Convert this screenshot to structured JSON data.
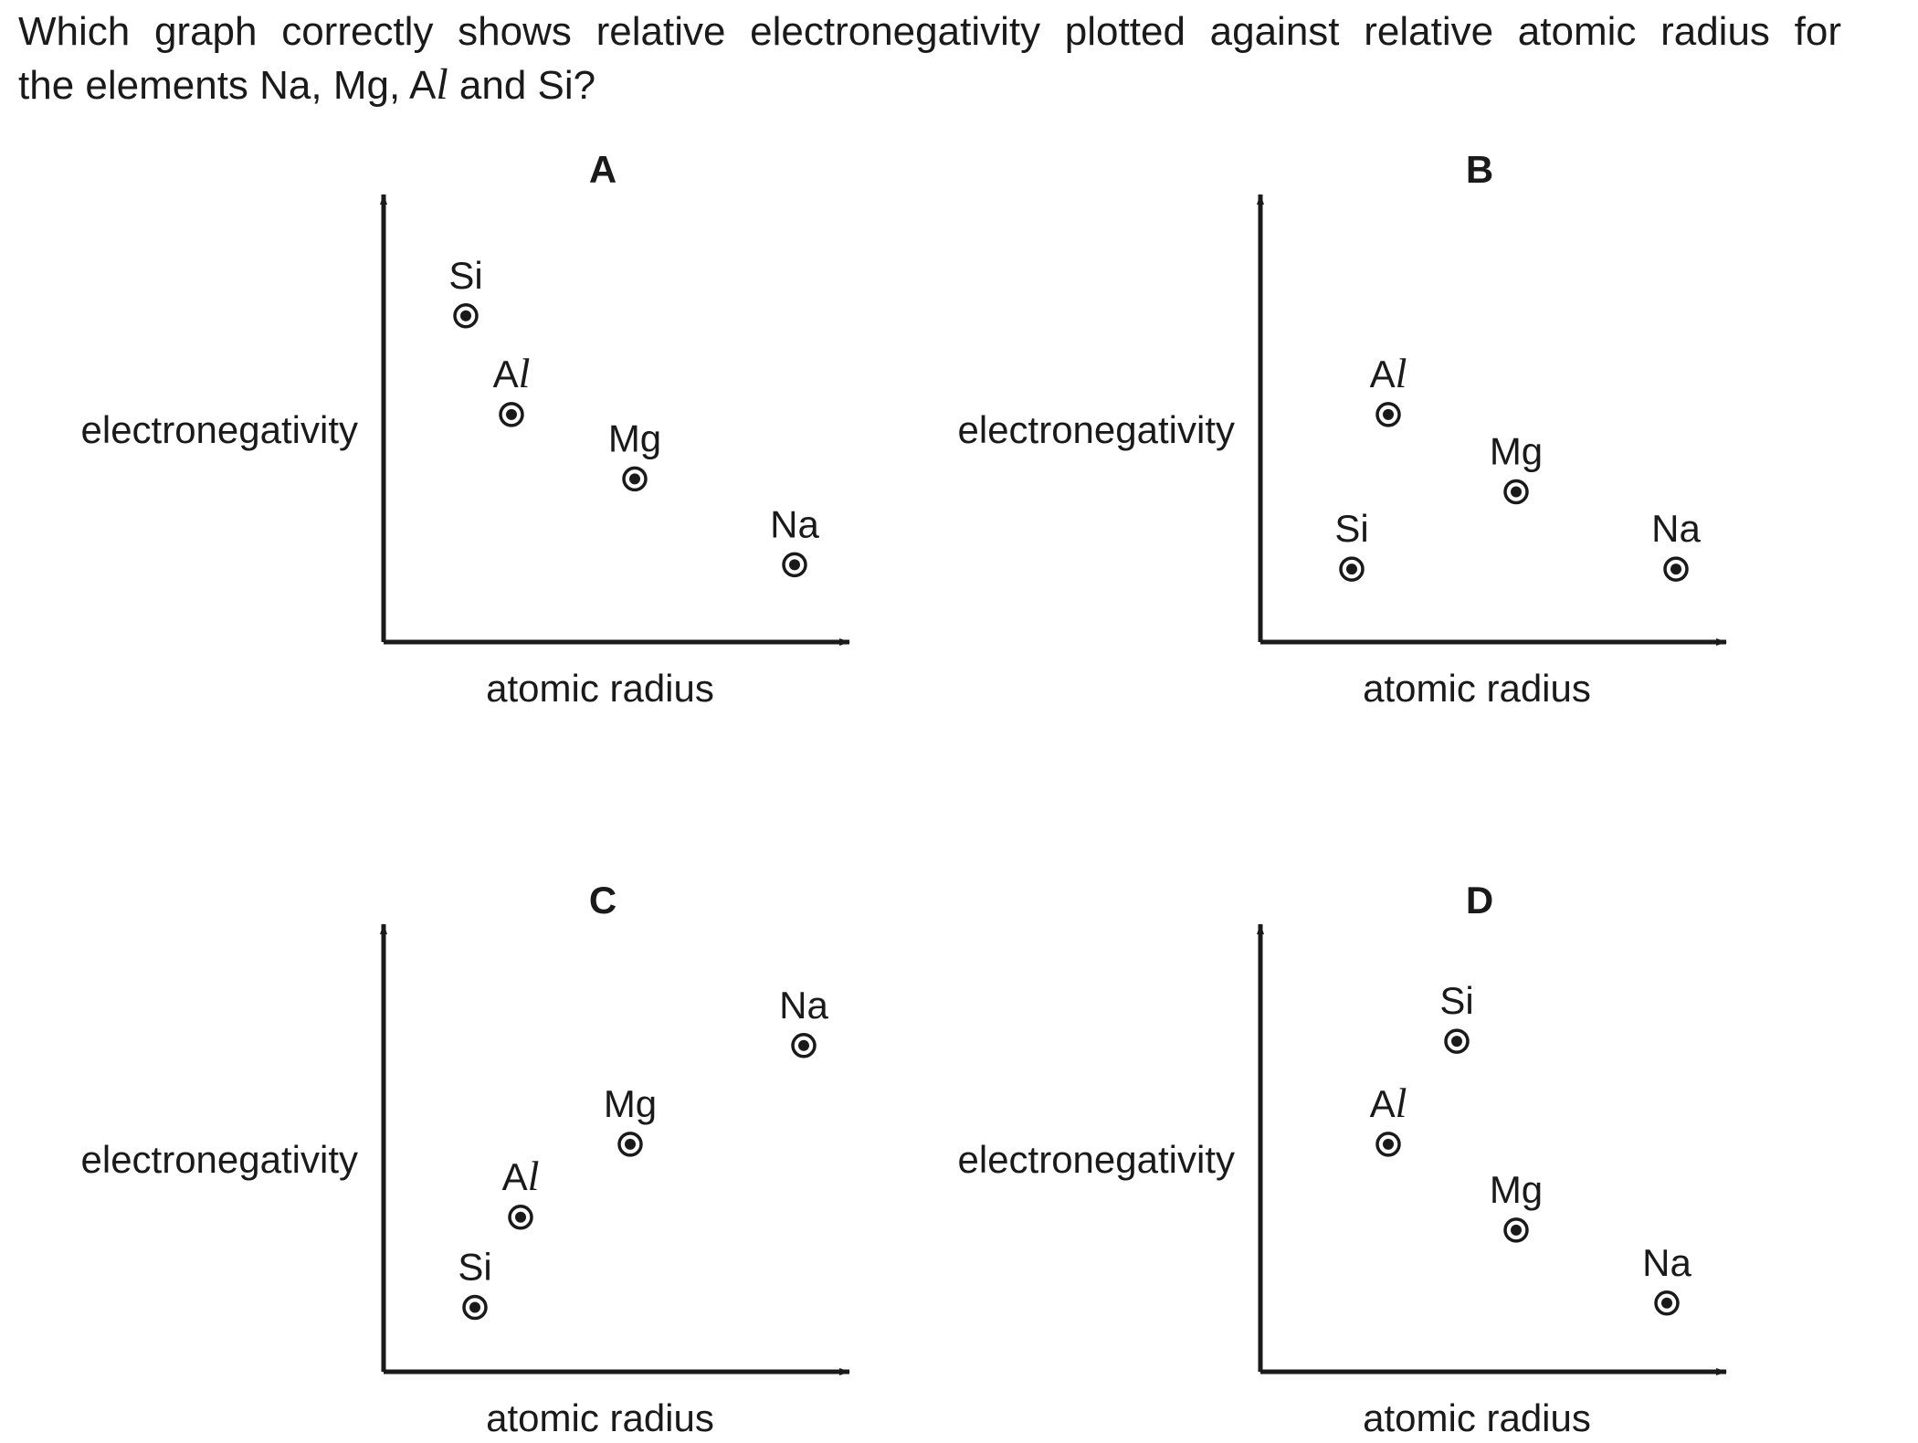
{
  "question": {
    "line1": "Which graph correctly shows relative electronegativity plotted against relative atomic radius for",
    "line2_before": "the elements Na, Mg, A",
    "line2_ital": "l",
    "line2_after": " and Si?"
  },
  "chart_data": [
    {
      "type": "scatter",
      "title": "A",
      "xlabel": "atomic radius",
      "ylabel": "electronegativity",
      "xlim": [
        0,
        10
      ],
      "ylim": [
        0,
        10
      ],
      "grid": false,
      "points": [
        {
          "label": "Si",
          "label_italic_part": "",
          "x": 1.8,
          "y": 7.6
        },
        {
          "label": "A",
          "label_italic_part": "l",
          "x": 2.8,
          "y": 5.3
        },
        {
          "label": "Mg",
          "label_italic_part": "",
          "x": 5.5,
          "y": 3.8
        },
        {
          "label": "Na",
          "label_italic_part": "",
          "x": 9.0,
          "y": 1.8
        }
      ]
    },
    {
      "type": "scatter",
      "title": "B",
      "xlabel": "atomic radius",
      "ylabel": "electronegativity",
      "xlim": [
        0,
        10
      ],
      "ylim": [
        0,
        10
      ],
      "grid": false,
      "points": [
        {
          "label": "A",
          "label_italic_part": "l",
          "x": 2.8,
          "y": 5.3
        },
        {
          "label": "Mg",
          "label_italic_part": "",
          "x": 5.6,
          "y": 3.5
        },
        {
          "label": "Si",
          "label_italic_part": "",
          "x": 2.0,
          "y": 1.7
        },
        {
          "label": "Na",
          "label_italic_part": "",
          "x": 9.1,
          "y": 1.7
        }
      ]
    },
    {
      "type": "scatter",
      "title": "C",
      "xlabel": "atomic radius",
      "ylabel": "electronegativity",
      "xlim": [
        0,
        10
      ],
      "ylim": [
        0,
        10
      ],
      "grid": false,
      "points": [
        {
          "label": "Na",
          "label_italic_part": "",
          "x": 9.2,
          "y": 7.6
        },
        {
          "label": "Mg",
          "label_italic_part": "",
          "x": 5.4,
          "y": 5.3
        },
        {
          "label": "A",
          "label_italic_part": "l",
          "x": 3.0,
          "y": 3.6
        },
        {
          "label": "Si",
          "label_italic_part": "",
          "x": 2.0,
          "y": 1.5
        }
      ]
    },
    {
      "type": "scatter",
      "title": "D",
      "xlabel": "atomic radius",
      "ylabel": "electronegativity",
      "xlim": [
        0,
        10
      ],
      "ylim": [
        0,
        10
      ],
      "grid": false,
      "points": [
        {
          "label": "Si",
          "label_italic_part": "",
          "x": 4.3,
          "y": 7.7
        },
        {
          "label": "A",
          "label_italic_part": "l",
          "x": 2.8,
          "y": 5.3
        },
        {
          "label": "Mg",
          "label_italic_part": "",
          "x": 5.6,
          "y": 3.3
        },
        {
          "label": "Na",
          "label_italic_part": "",
          "x": 8.9,
          "y": 1.6
        }
      ]
    }
  ]
}
